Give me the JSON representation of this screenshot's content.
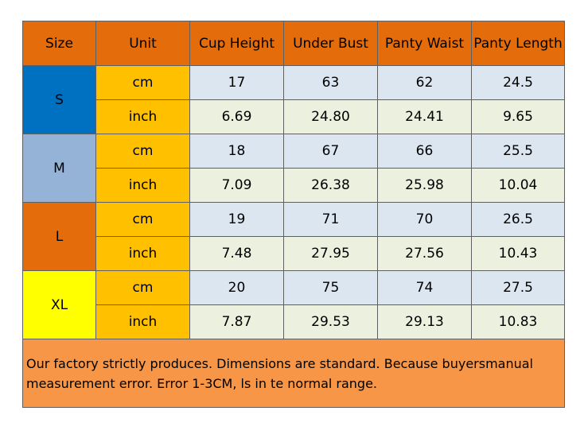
{
  "table": {
    "headers": [
      "Size",
      "Unit",
      "Cup Height",
      "Under Bust",
      "Panty Waist",
      "Panty Length"
    ],
    "sizes": [
      {
        "size": "S",
        "color": "#0070c0",
        "rows": [
          {
            "unit": "cm",
            "values": [
              "17",
              "63",
              "62",
              "24.5"
            ]
          },
          {
            "unit": "inch",
            "values": [
              "6.69",
              "24.80",
              "24.41",
              "9.65"
            ]
          }
        ]
      },
      {
        "size": "M",
        "color": "#95b3d7",
        "rows": [
          {
            "unit": "cm",
            "values": [
              "18",
              "67",
              "66",
              "25.5"
            ]
          },
          {
            "unit": "inch",
            "values": [
              "7.09",
              "26.38",
              "25.98",
              "10.04"
            ]
          }
        ]
      },
      {
        "size": "L",
        "color": "#e46c0a",
        "rows": [
          {
            "unit": "cm",
            "values": [
              "19",
              "71",
              "70",
              "26.5"
            ]
          },
          {
            "unit": "inch",
            "values": [
              "7.48",
              "27.95",
              "27.56",
              "10.43"
            ]
          }
        ]
      },
      {
        "size": "XL",
        "color": "#ffff00",
        "rows": [
          {
            "unit": "cm",
            "values": [
              "20",
              "75",
              "74",
              "27.5"
            ]
          },
          {
            "unit": "inch",
            "values": [
              "7.87",
              "29.53",
              "29.13",
              "10.83"
            ]
          }
        ]
      }
    ],
    "note": "Our factory strictly produces. Dimensions are standard. Because buyersmanual measurement error. Error 1-3CM, ls in te normal range."
  }
}
